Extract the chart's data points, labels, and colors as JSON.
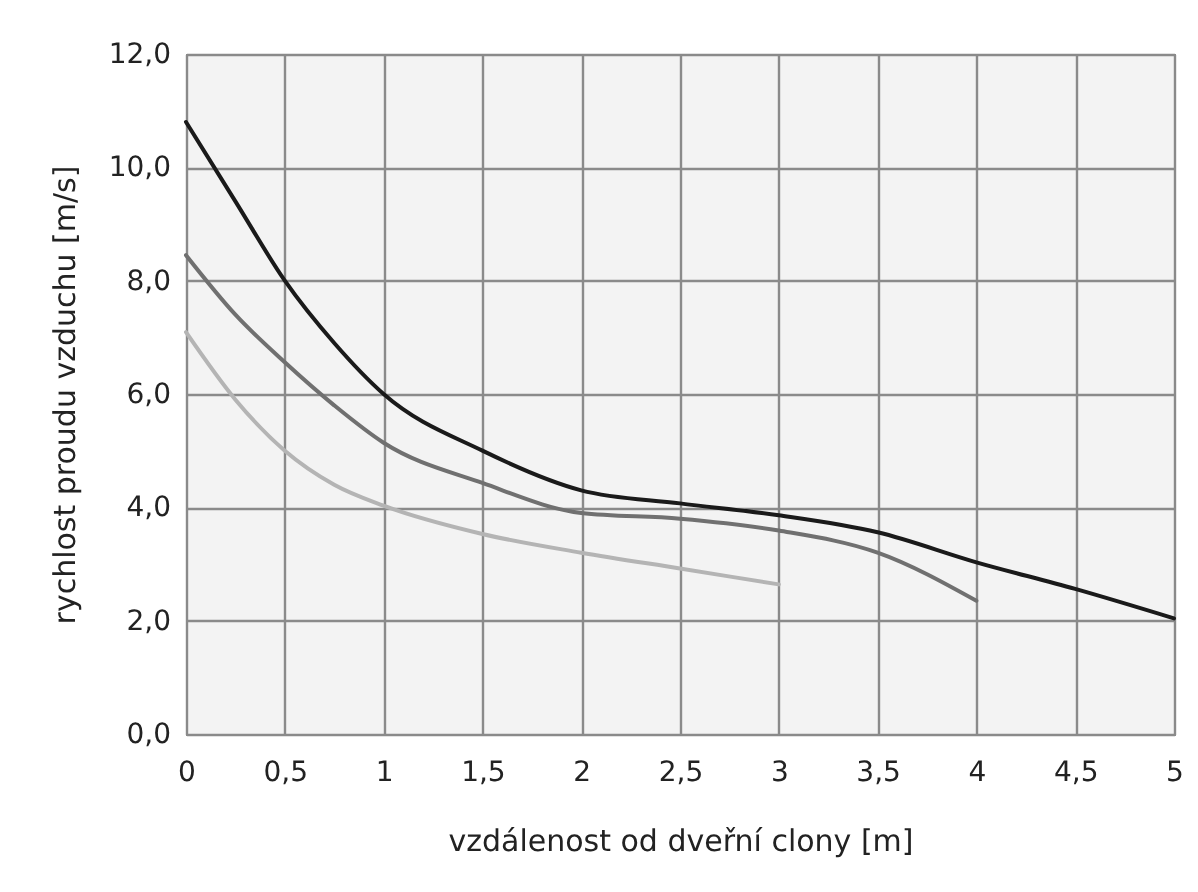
{
  "chart_data": {
    "type": "line",
    "xlabel": "vzdálenost od dveřní clony [m]",
    "ylabel": "rychlost proudu vzduchu [m/s]",
    "xlim": [
      0,
      5
    ],
    "ylim": [
      0,
      12
    ],
    "xticks": [
      0,
      {
        "value": 0.5,
        "label": "0,5"
      },
      1,
      {
        "value": 1.5,
        "label": "1,5"
      },
      2,
      {
        "value": 2.5,
        "label": "2,5"
      },
      3,
      {
        "value": 3.5,
        "label": "3,5"
      },
      4,
      {
        "value": 4.5,
        "label": "4,5"
      },
      5
    ],
    "yticks": [
      {
        "value": 0,
        "label": "0,0"
      },
      {
        "value": 2,
        "label": "2,0"
      },
      {
        "value": 4,
        "label": "4,0"
      },
      {
        "value": 6,
        "label": "6,0"
      },
      {
        "value": 8,
        "label": "8,0"
      },
      {
        "value": 10,
        "label": "10,0"
      },
      {
        "value": 12,
        "label": "12,0"
      }
    ],
    "grid": true,
    "line_style": "solid",
    "marker": "none",
    "series": [
      {
        "color": "#1a1a1a",
        "x": [
          0,
          0.25,
          0.5,
          0.75,
          1,
          1.5,
          2,
          2.5,
          3,
          3.5,
          4,
          4.5,
          5
        ],
        "values": [
          10.8,
          9.4,
          8.0,
          6.9,
          6.0,
          5.0,
          4.3,
          4.07,
          3.86,
          3.56,
          3.03,
          2.56,
          2.04
        ]
      },
      {
        "color": "#707070",
        "x": [
          0,
          0.25,
          0.5,
          0.75,
          1,
          1.5,
          2,
          2.5,
          3,
          3.5,
          4
        ],
        "values": [
          8.45,
          7.4,
          6.56,
          5.8,
          5.14,
          4.43,
          3.9,
          3.8,
          3.59,
          3.2,
          2.35
        ]
      },
      {
        "color": "#b4b4b4",
        "x": [
          0,
          0.25,
          0.5,
          0.75,
          1,
          1.5,
          2,
          2.5,
          3
        ],
        "values": [
          7.09,
          5.9,
          5.0,
          4.4,
          4.03,
          3.53,
          3.2,
          2.92,
          2.64
        ]
      }
    ]
  }
}
